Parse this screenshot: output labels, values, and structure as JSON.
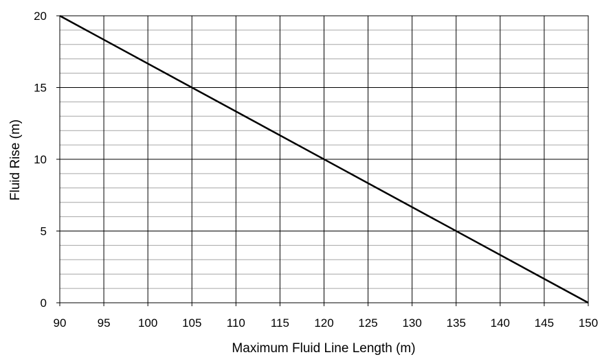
{
  "chart_data": {
    "type": "line",
    "title": "",
    "xlabel": "Maximum Fluid Line Length (m)",
    "ylabel": "Fluid Rise (m)",
    "xlim": [
      90,
      150
    ],
    "ylim": [
      0,
      20
    ],
    "x_ticks": [
      "90",
      "95",
      "100",
      "105",
      "110",
      "115",
      "120",
      "125",
      "130",
      "135",
      "140",
      "145",
      "150"
    ],
    "y_ticks": [
      "0",
      "5",
      "10",
      "15",
      "20"
    ],
    "major_grid_x_step": 5,
    "major_grid_y_step": 5,
    "minor_grid_y_step": 1,
    "grid": true,
    "legend": "none",
    "line_color": "#000000",
    "grid_color": "#000000",
    "minor_grid_color": "#a6a6a6",
    "series": [
      {
        "x": [
          90,
          150
        ],
        "y": [
          20,
          0
        ]
      }
    ]
  }
}
